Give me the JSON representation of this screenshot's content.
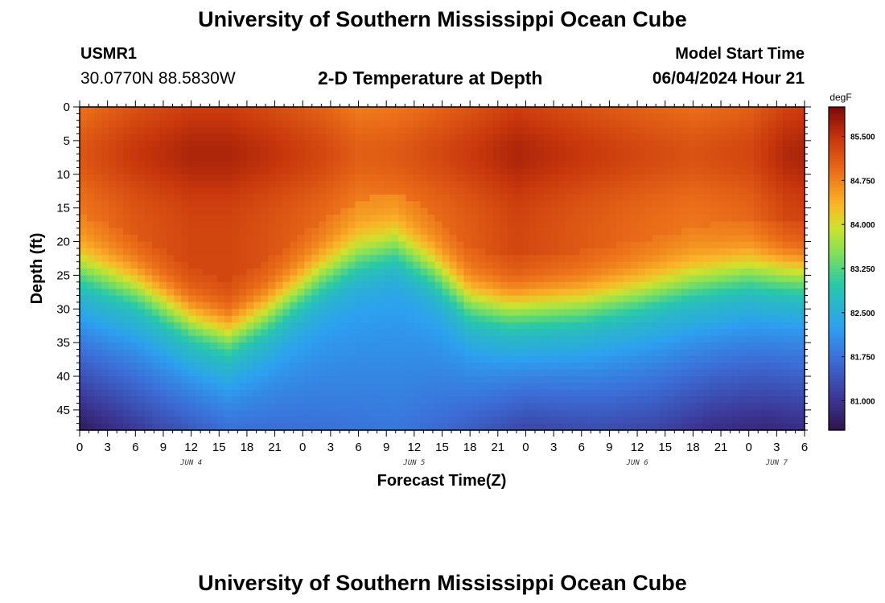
{
  "title": "University of Southern Mississippi Ocean Cube",
  "footer_title": "University of Southern Mississippi Ocean Cube",
  "station": {
    "id": "USMR1",
    "coords": "30.0770N  88.5830W"
  },
  "subtitle": "2-D Temperature at Depth",
  "model_start": {
    "label": "Model Start Time",
    "value": "06/04/2024 Hour 21"
  },
  "chart_data": {
    "type": "heatmap",
    "title": "2-D Temperature at Depth",
    "xlabel": "Forecast Time(Z)",
    "ylabel": "Depth (ft)",
    "units": "degF",
    "x_hours_range": [
      0,
      78
    ],
    "x_tick_labels": [
      "0",
      "3",
      "6",
      "9",
      "12",
      "15",
      "18",
      "21",
      "0",
      "3",
      "6",
      "9",
      "12",
      "15",
      "18",
      "21",
      "0",
      "3",
      "6",
      "9",
      "12",
      "15",
      "18",
      "21",
      "0",
      "3",
      "6"
    ],
    "date_labels": [
      {
        "hour": 12,
        "text": "JUN 4"
      },
      {
        "hour": 36,
        "text": "JUN 5"
      },
      {
        "hour": 60,
        "text": "JUN 6"
      },
      {
        "hour": 75,
        "text": "JUN 7"
      }
    ],
    "y_range": [
      0,
      48
    ],
    "y_tick_labels": [
      "0",
      "5",
      "10",
      "15",
      "20",
      "25",
      "30",
      "35",
      "40",
      "45"
    ],
    "colorbar": {
      "min": 80.5,
      "max": 86.0,
      "tick_values": [
        81.0,
        81.75,
        82.5,
        83.25,
        84.0,
        84.75,
        85.5
      ],
      "tick_labels": [
        "81.000",
        "81.750",
        "82.500",
        "83.250",
        "84.000",
        "84.750",
        "85.500"
      ]
    },
    "thermocline_depth_by_hour": [
      [
        0,
        24
      ],
      [
        6,
        27
      ],
      [
        12,
        32
      ],
      [
        16,
        34
      ],
      [
        20,
        31
      ],
      [
        26,
        25
      ],
      [
        30,
        22
      ],
      [
        34,
        20.5
      ],
      [
        38,
        24
      ],
      [
        42,
        29
      ],
      [
        46,
        30
      ],
      [
        54,
        29.5
      ],
      [
        60,
        28
      ],
      [
        66,
        26
      ],
      [
        72,
        24.5
      ],
      [
        78,
        25
      ]
    ],
    "surface_warmth_by_hour": [
      [
        0,
        0.35
      ],
      [
        6,
        0.75
      ],
      [
        12,
        1.0
      ],
      [
        16,
        1.0
      ],
      [
        20,
        0.85
      ],
      [
        26,
        0.55
      ],
      [
        30,
        0.25
      ],
      [
        34,
        0.3
      ],
      [
        40,
        0.6
      ],
      [
        47,
        1.0
      ],
      [
        54,
        0.75
      ],
      [
        60,
        0.55
      ],
      [
        66,
        0.4
      ],
      [
        72,
        0.55
      ],
      [
        76,
        0.95
      ],
      [
        78,
        1.0
      ]
    ],
    "bottom_min_by_hour": [
      [
        0,
        80.6
      ],
      [
        8,
        81.2
      ],
      [
        16,
        81.7
      ],
      [
        24,
        81.7
      ],
      [
        34,
        81.8
      ],
      [
        40,
        81.6
      ],
      [
        48,
        81.2
      ],
      [
        56,
        81.3
      ],
      [
        62,
        81.2
      ],
      [
        68,
        80.9
      ],
      [
        74,
        80.8
      ],
      [
        78,
        80.9
      ]
    ]
  }
}
